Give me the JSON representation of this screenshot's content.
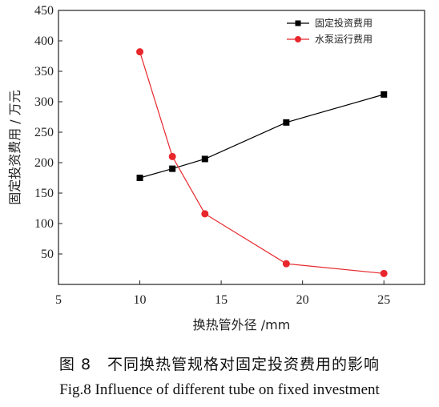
{
  "chart_data": {
    "type": "line",
    "xlabel": "换热管外径 /mm",
    "ylabel": "固定投资费用 / 万元",
    "xlim": [
      5,
      27.5
    ],
    "ylim": [
      0,
      450
    ],
    "xticks": [
      5,
      10,
      15,
      20,
      25
    ],
    "yticks": [
      50,
      100,
      150,
      200,
      250,
      300,
      350,
      400,
      450
    ],
    "legend_position": "top-right",
    "grid": false,
    "series": [
      {
        "name": "固定投资费用",
        "color": "#000000",
        "marker": "square",
        "x": [
          10,
          12,
          14,
          19,
          25
        ],
        "y": [
          175,
          190,
          206,
          266,
          312
        ]
      },
      {
        "name": "水泵运行费用",
        "color": "#e8262b",
        "marker": "circle",
        "x": [
          10,
          12,
          14,
          19,
          25
        ],
        "y": [
          382,
          210,
          116,
          34,
          18
        ]
      }
    ]
  },
  "caption": {
    "cn": "图 8　不同换热管规格对固定投资费用的影响",
    "en": "Fig.8  Influence of different tube on fixed investment"
  }
}
